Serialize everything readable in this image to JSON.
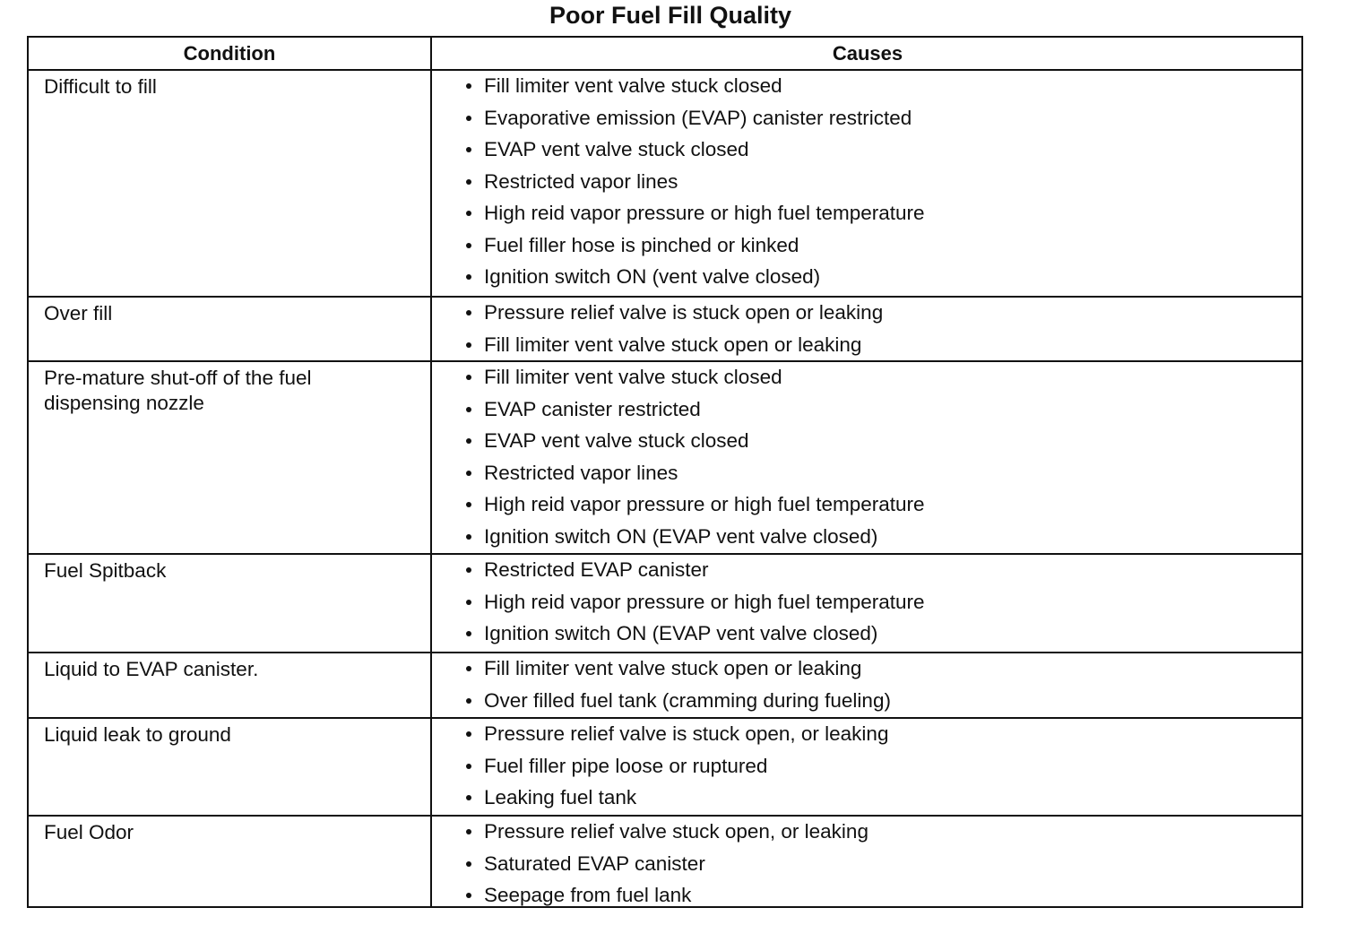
{
  "title": "Poor Fuel Fill Quality",
  "table": {
    "header": [
      "Condition",
      "Causes"
    ],
    "rows": [
      {
        "condition": "Difficult to fill",
        "causes": [
          "Fill limiter vent valve stuck closed",
          "Evaporative emission (EVAP) canister restricted",
          "EVAP vent valve stuck closed",
          "Restricted vapor lines",
          "High reid vapor pressure or high fuel temperature",
          "Fuel filler hose is pinched or kinked",
          "Ignition switch ON (vent valve closed)"
        ]
      },
      {
        "condition": "Over fill",
        "causes": [
          "Pressure relief valve is stuck open or leaking",
          "Fill limiter vent valve stuck open or leaking"
        ]
      },
      {
        "condition": "Pre-mature shut-off of the fuel dispensing nozzle",
        "causes": [
          "Fill limiter vent valve stuck closed",
          "EVAP canister restricted",
          "EVAP vent valve stuck closed",
          "Restricted vapor lines",
          "High reid vapor pressure or high fuel temperature",
          "Ignition switch ON (EVAP vent valve closed)"
        ]
      },
      {
        "condition": "Fuel Spitback",
        "causes": [
          "Restricted EVAP canister",
          "High reid vapor pressure or high fuel temperature",
          "Ignition switch ON (EVAP vent valve closed)"
        ]
      },
      {
        "condition": "Liquid to EVAP canister.",
        "causes": [
          "Fill limiter vent valve stuck open or leaking",
          "Over filled fuel tank (cramming during fueling)"
        ]
      },
      {
        "condition": "Liquid leak to ground",
        "causes": [
          "Pressure relief valve is stuck open, or leaking",
          "Fuel filler pipe loose or ruptured",
          "Leaking fuel tank"
        ]
      },
      {
        "condition": "Fuel Odor",
        "causes": [
          "Pressure relief valve stuck open, or leaking",
          "Saturated EVAP canister",
          "Seepage from fuel lank"
        ]
      }
    ]
  }
}
